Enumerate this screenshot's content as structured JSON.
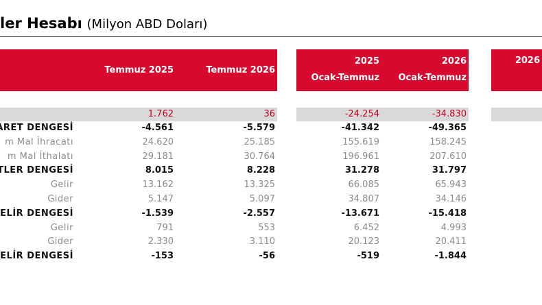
{
  "header": {
    "title": "ler Hesabı",
    "subtitle": "(Milyon ABD Doları)"
  },
  "table": {
    "columns": [
      {
        "lines": [
          "Temmuz 2025"
        ]
      },
      {
        "lines": [
          "Temmuz 2026"
        ]
      },
      {
        "lines": [
          "2025",
          "Ocak-Temmuz"
        ]
      },
      {
        "lines": [
          "2026",
          "Ocak-Temmuz"
        ]
      },
      {
        "lines": [
          "2026"
        ]
      }
    ],
    "rows": [
      {
        "values": [
          "1.762",
          "36",
          "-24.254",
          "-34.830"
        ],
        "style": "total"
      },
      {
        "label": "ARET DENGESİ",
        "values": [
          "-4.561",
          "-5.579",
          "-41.342",
          "-49.365"
        ],
        "style": "bold"
      },
      {
        "label": "m Mal İhracatı",
        "values": [
          "24.620",
          "25.185",
          "155.619",
          "158.245"
        ],
        "style": "sub"
      },
      {
        "label": "m Mal İthalatı",
        "values": [
          "29.181",
          "30.764",
          "196.961",
          "207.610"
        ],
        "style": "sub"
      },
      {
        "label": "TLER DENGESİ",
        "values": [
          "8.015",
          "8.228",
          "31.278",
          "31.797"
        ],
        "style": "bold"
      },
      {
        "label": "Gelir",
        "values": [
          "13.162",
          "13.325",
          "66.085",
          "65.943"
        ],
        "style": "sub"
      },
      {
        "label": "Gider",
        "values": [
          "5.147",
          "5.097",
          "34.807",
          "34.146"
        ],
        "style": "sub"
      },
      {
        "label": "ELİR DENGESİ",
        "values": [
          "-1.539",
          "-2.557",
          "-13.671",
          "-15.418"
        ],
        "style": "bold"
      },
      {
        "label": "Gelir",
        "values": [
          "791",
          "553",
          "6.452",
          "4.993"
        ],
        "style": "sub"
      },
      {
        "label": "Gider",
        "values": [
          "2.330",
          "3.110",
          "20.123",
          "20.411"
        ],
        "style": "sub"
      },
      {
        "label": "ELİR DENGESİ",
        "values": [
          "-153",
          "-56",
          "-519",
          "-1.844"
        ],
        "style": "bold"
      }
    ]
  }
}
